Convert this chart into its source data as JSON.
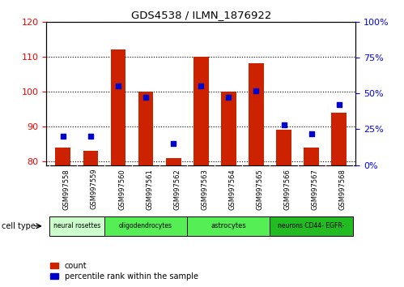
{
  "title": "GDS4538 / ILMN_1876922",
  "samples": [
    "GSM997558",
    "GSM997559",
    "GSM997560",
    "GSM997561",
    "GSM997562",
    "GSM997563",
    "GSM997564",
    "GSM997565",
    "GSM997566",
    "GSM997567",
    "GSM997568"
  ],
  "bar_values": [
    84,
    83,
    112,
    100,
    81,
    110,
    100,
    108,
    89,
    84,
    94
  ],
  "dot_values_pct": [
    20,
    20,
    55,
    47,
    15,
    55,
    47,
    52,
    28,
    22,
    42
  ],
  "ylim_left": [
    79,
    120
  ],
  "ylim_right": [
    0,
    100
  ],
  "yticks_left": [
    80,
    90,
    100,
    110,
    120
  ],
  "yticks_right": [
    0,
    25,
    50,
    75,
    100
  ],
  "cell_types": [
    {
      "label": "neural rosettes",
      "start": 0,
      "end": 2,
      "color": "#ccffcc"
    },
    {
      "label": "oligodendrocytes",
      "start": 2,
      "end": 5,
      "color": "#55ee55"
    },
    {
      "label": "astrocytes",
      "start": 5,
      "end": 8,
      "color": "#55ee55"
    },
    {
      "label": "neurons CD44- EGFR-",
      "start": 8,
      "end": 11,
      "color": "#22bb22"
    }
  ],
  "bar_color": "#cc2200",
  "dot_color": "#0000cc",
  "bar_width": 0.55,
  "legend_items": [
    "count",
    "percentile rank within the sample"
  ],
  "cell_type_label": "cell type",
  "xtick_bg_color": "#cccccc",
  "background_color": "#ffffff"
}
